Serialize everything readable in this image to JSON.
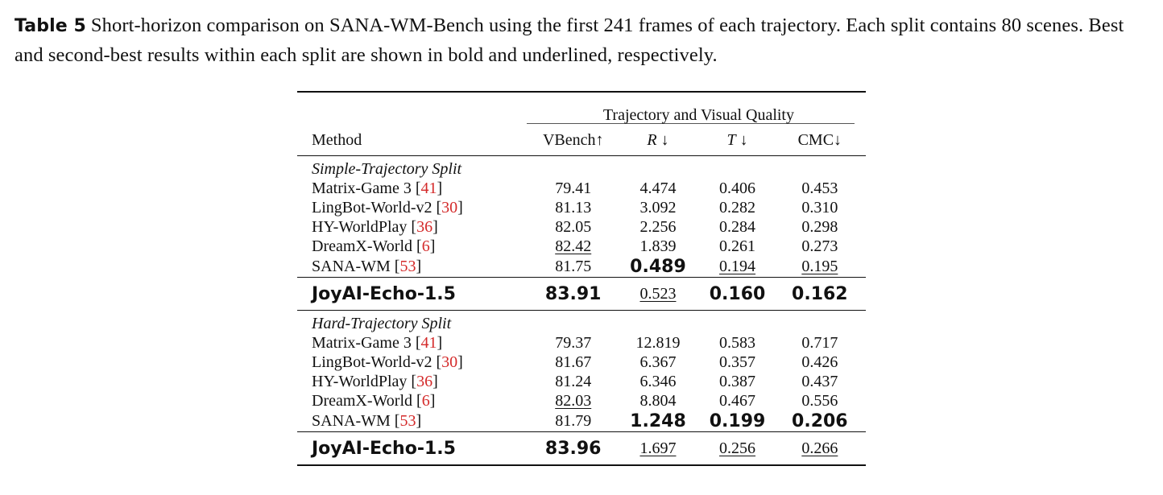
{
  "caption": {
    "label": "Table 5",
    "text": "Short-horizon comparison on SANA-WM-Bench using the first 241 frames of each trajectory. Each split contains 80 scenes. Best and second-best results within each split are shown in bold and underlined, respectively."
  },
  "table": {
    "group_header": "Trajectory and Visual Quality",
    "columns": {
      "method": "Method",
      "vbench": "VBench↑",
      "r_sym": "R",
      "r_arrow": " ↓",
      "t_sym": "T",
      "t_arrow": " ↓",
      "cmc": "CMC↓"
    },
    "sections": [
      {
        "title": "Simple-Trajectory Split",
        "rows": [
          {
            "name": "Matrix-Game 3 ",
            "ref": "41",
            "vbench": "79.41",
            "r": "4.474",
            "t": "0.406",
            "cmc": "0.453"
          },
          {
            "name": "LingBot-World-v2 ",
            "ref": "30",
            "vbench": "81.13",
            "r": "3.092",
            "t": "0.282",
            "cmc": "0.310"
          },
          {
            "name": "HY-WorldPlay ",
            "ref": "36",
            "vbench": "82.05",
            "r": "2.256",
            "t": "0.284",
            "cmc": "0.298"
          },
          {
            "name": "DreamX-World ",
            "ref": "6",
            "vbench": "82.42",
            "r": "1.839",
            "t": "0.261",
            "cmc": "0.273"
          },
          {
            "name": "SANA-WM ",
            "ref": "53",
            "vbench": "81.75",
            "r": "0.489",
            "t": "0.194",
            "cmc": "0.195"
          }
        ],
        "ours": {
          "name": "JoyAI-Echo-1.5",
          "vbench": "83.91",
          "r": "0.523",
          "t": "0.160",
          "cmc": "0.162"
        }
      },
      {
        "title": "Hard-Trajectory Split",
        "rows": [
          {
            "name": "Matrix-Game 3 ",
            "ref": "41",
            "vbench": "79.37",
            "r": "12.819",
            "t": "0.583",
            "cmc": "0.717"
          },
          {
            "name": "LingBot-World-v2 ",
            "ref": "30",
            "vbench": "81.67",
            "r": "6.367",
            "t": "0.357",
            "cmc": "0.426"
          },
          {
            "name": "HY-WorldPlay ",
            "ref": "36",
            "vbench": "81.24",
            "r": "6.346",
            "t": "0.387",
            "cmc": "0.437"
          },
          {
            "name": "DreamX-World ",
            "ref": "6",
            "vbench": "82.03",
            "r": "8.804",
            "t": "0.467",
            "cmc": "0.556"
          },
          {
            "name": "SANA-WM ",
            "ref": "53",
            "vbench": "81.79",
            "r": "1.248",
            "t": "0.199",
            "cmc": "0.206"
          }
        ],
        "ours": {
          "name": "JoyAI-Echo-1.5",
          "vbench": "83.96",
          "r": "1.697",
          "t": "0.256",
          "cmc": "0.266"
        }
      }
    ]
  }
}
